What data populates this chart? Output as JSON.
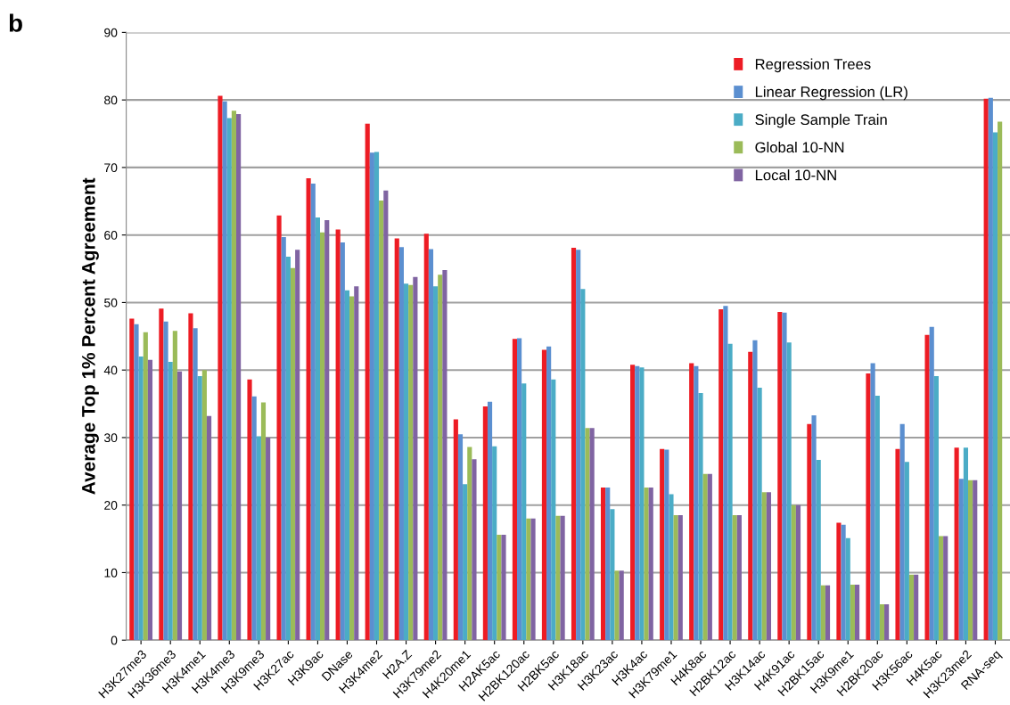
{
  "chart_data": {
    "type": "bar",
    "ylabel": "Average Top 1% Percent Agreement",
    "annotations": [
      "b"
    ],
    "categories": [
      "H3K27me3",
      "H3K36me3",
      "H3K4me1",
      "H3K4me3",
      "H3K9me3",
      "H3K27ac",
      "H3K9ac",
      "DNase",
      "H3K4me2",
      "H2A.Z",
      "H3K79me2",
      "H4K20me1",
      "H2AK5ac",
      "H2BK120ac",
      "H2BK5ac",
      "H3K18ac",
      "H3K23ac",
      "H3K4ac",
      "H3K79me1",
      "H4K8ac",
      "H2BK12ac",
      "H3K14ac",
      "H4K91ac",
      "H2BK15ac",
      "H3K9me1",
      "H2BK20ac",
      "H3K56ac",
      "H4K5ac",
      "H3K23me2",
      "RNA-seq"
    ],
    "series": [
      {
        "name": "Regression Trees",
        "color": "#ed1c24",
        "values": [
          47.6,
          49.1,
          48.4,
          80.6,
          38.6,
          62.9,
          68.4,
          60.8,
          76.5,
          59.5,
          60.2,
          32.7,
          34.6,
          44.6,
          43.0,
          58.1,
          22.6,
          40.8,
          28.3,
          41.0,
          49.0,
          42.7,
          48.6,
          32.0,
          17.4,
          39.5,
          28.3,
          45.2,
          28.5,
          80.2
        ]
      },
      {
        "name": "Linear Regression (LR)",
        "color": "#5b8fd0",
        "values": [
          46.8,
          47.2,
          46.2,
          79.8,
          36.1,
          59.7,
          67.6,
          58.9,
          72.2,
          58.2,
          57.9,
          30.5,
          35.3,
          44.7,
          43.5,
          57.8,
          22.6,
          40.6,
          28.2,
          40.6,
          49.5,
          44.4,
          48.5,
          33.3,
          17.1,
          41.0,
          32.0,
          46.4,
          23.9,
          80.3
        ]
      },
      {
        "name": "Single Sample Train",
        "color": "#4bacc6",
        "values": [
          42.0,
          41.2,
          39.1,
          77.3,
          30.2,
          56.8,
          62.6,
          51.8,
          72.3,
          52.8,
          52.4,
          23.1,
          28.7,
          38.0,
          38.6,
          52.0,
          19.4,
          40.4,
          21.6,
          36.6,
          43.9,
          37.4,
          44.1,
          26.7,
          15.1,
          36.2,
          26.4,
          39.1,
          28.5,
          75.2
        ]
      },
      {
        "name": "Global 10-NN",
        "color": "#9bbb59",
        "values": [
          45.6,
          45.8,
          40.0,
          78.4,
          35.2,
          55.1,
          60.4,
          50.9,
          65.1,
          52.6,
          54.1,
          28.6,
          15.6,
          18.0,
          18.4,
          31.4,
          10.3,
          22.6,
          18.5,
          24.6,
          18.5,
          21.9,
          20.0,
          8.1,
          8.2,
          5.3,
          9.7,
          15.4,
          23.7,
          76.8
        ]
      },
      {
        "name": "Local 10-NN",
        "color": "#8064a2",
        "values": [
          41.5,
          39.8,
          33.2,
          77.9,
          30.0,
          57.8,
          62.2,
          52.4,
          66.6,
          53.8,
          54.8,
          26.8,
          15.6,
          18.0,
          18.4,
          31.4,
          10.3,
          22.6,
          18.5,
          24.6,
          18.5,
          21.9,
          20.0,
          8.1,
          8.2,
          5.3,
          9.7,
          15.4,
          23.7,
          null
        ]
      }
    ],
    "ylim": [
      0,
      90
    ],
    "yticks": [
      0,
      10,
      20,
      30,
      40,
      50,
      60,
      70,
      80,
      90
    ],
    "grid": "y",
    "legend": "top right"
  }
}
